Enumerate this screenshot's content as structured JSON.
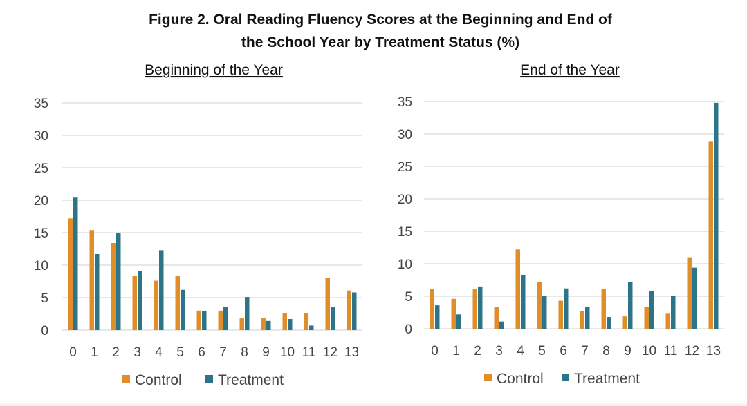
{
  "figure_title": {
    "line1": "Figure 2. Oral Reading Fluency Scores at the Beginning and End of",
    "line2": "the School Year by Treatment Status (%)"
  },
  "colors": {
    "control": "#E08E29",
    "treatment": "#2D7488"
  },
  "chart_data": [
    {
      "type": "bar",
      "title": "Beginning of the Year",
      "categories": [
        "0",
        "1",
        "2",
        "3",
        "4",
        "5",
        "6",
        "7",
        "8",
        "9",
        "10",
        "11",
        "12",
        "13"
      ],
      "ylim": [
        0,
        35
      ],
      "yticks": [
        "0",
        "5",
        "10",
        "15",
        "20",
        "25",
        "30",
        "35"
      ],
      "grid": true,
      "legend": "bottom",
      "series": [
        {
          "name": "Control",
          "values": [
            17.2,
            15.4,
            13.4,
            8.4,
            7.6,
            8.4,
            3.0,
            3.0,
            1.8,
            1.8,
            2.6,
            2.6,
            8.0,
            6.1
          ]
        },
        {
          "name": "Treatment",
          "values": [
            20.4,
            11.7,
            14.9,
            9.1,
            12.3,
            6.2,
            2.9,
            3.6,
            5.1,
            1.4,
            1.7,
            0.7,
            3.6,
            5.8
          ]
        }
      ]
    },
    {
      "type": "bar",
      "title": "End of the Year",
      "categories": [
        "0",
        "1",
        "2",
        "3",
        "4",
        "5",
        "6",
        "7",
        "8",
        "9",
        "10",
        "11",
        "12",
        "13"
      ],
      "ylim": [
        0,
        35
      ],
      "yticks": [
        "0",
        "5",
        "10",
        "15",
        "20",
        "25",
        "30",
        "35"
      ],
      "grid": true,
      "legend": "bottom",
      "series": [
        {
          "name": "Control",
          "values": [
            6.1,
            4.6,
            6.1,
            3.4,
            12.2,
            7.2,
            4.3,
            2.7,
            6.1,
            1.9,
            3.4,
            2.3,
            11.0,
            28.9
          ]
        },
        {
          "name": "Treatment",
          "values": [
            3.6,
            2.2,
            6.5,
            1.1,
            8.3,
            5.1,
            6.2,
            3.3,
            1.8,
            7.2,
            5.8,
            5.1,
            9.4,
            34.8
          ]
        }
      ]
    }
  ]
}
